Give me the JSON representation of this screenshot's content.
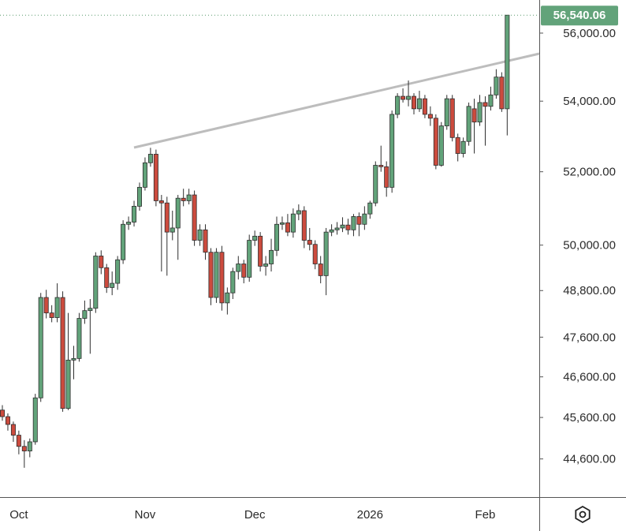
{
  "chart_data": {
    "type": "candlestick",
    "log_scale": true,
    "grid": false,
    "up_color": "#62a37a",
    "down_color": "#cc4b3e",
    "categories": [
      null,
      null,
      null,
      "Oct",
      null,
      null,
      null,
      null,
      null,
      null,
      null,
      null,
      null,
      null,
      null,
      null,
      null,
      null,
      null,
      null,
      null,
      null,
      null,
      null,
      null,
      null,
      "Nov",
      null,
      null,
      null,
      null,
      null,
      null,
      null,
      null,
      null,
      null,
      null,
      null,
      null,
      null,
      null,
      null,
      null,
      null,
      null,
      "Dec",
      null,
      null,
      null,
      null,
      null,
      null,
      null,
      null,
      null,
      null,
      null,
      null,
      null,
      null,
      null,
      null,
      null,
      null,
      null,
      null,
      "2026",
      null,
      null,
      null,
      null,
      null,
      null,
      null,
      null,
      null,
      null,
      null,
      null,
      null,
      null,
      null,
      null,
      null,
      null,
      null,
      null,
      "Feb",
      null,
      null,
      null,
      null
    ],
    "open": [
      45780,
      45620,
      45430,
      45170,
      44900,
      44790,
      45010,
      46080,
      48620,
      48220,
      48100,
      48620,
      45820,
      47020,
      47060,
      48080,
      48280,
      48340,
      49710,
      49400,
      48880,
      48990,
      49610,
      50560,
      50620,
      51050,
      51570,
      52250,
      52490,
      51200,
      51140,
      50350,
      50460,
      51270,
      51200,
      51360,
      50130,
      50410,
      49810,
      48620,
      49810,
      48480,
      48740,
      49300,
      49500,
      49150,
      50130,
      50240,
      49440,
      49500,
      49860,
      50560,
      50600,
      50350,
      50840,
      50930,
      50130,
      50020,
      49500,
      49190,
      50350,
      50410,
      50460,
      50540,
      50410,
      50770,
      50560,
      50840,
      51140,
      52180,
      52140,
      51570,
      53620,
      54140,
      54050,
      54140,
      53780,
      54070,
      53620,
      53510,
      52180,
      53290,
      54070,
      52960,
      52510,
      52850,
      53780,
      53400,
      53960,
      53850,
      54180,
      54700,
      53780
    ],
    "high": [
      45900,
      45700,
      45500,
      45280,
      45050,
      45090,
      46180,
      48740,
      48820,
      48420,
      48990,
      48780,
      48220,
      47380,
      48220,
      48540,
      48580,
      49810,
      49860,
      49500,
      49300,
      49710,
      50670,
      50770,
      51200,
      51700,
      52400,
      52670,
      52620,
      51360,
      51310,
      50930,
      51360,
      51530,
      51530,
      51480,
      50560,
      50560,
      49920,
      49920,
      49980,
      48880,
      49400,
      49710,
      49610,
      50280,
      50390,
      50350,
      49710,
      50170,
      50770,
      50770,
      50840,
      50990,
      51100,
      51050,
      50460,
      50130,
      49710,
      50460,
      50560,
      50620,
      50750,
      50710,
      50840,
      50880,
      51050,
      51200,
      52290,
      52730,
      52290,
      53730,
      54230,
      54370,
      54600,
      54230,
      54300,
      54180,
      53850,
      53620,
      53400,
      54180,
      54180,
      53070,
      52960,
      53960,
      54070,
      54180,
      54140,
      54420,
      54930,
      54840,
      56540.06
    ],
    "low": [
      45520,
      45280,
      45010,
      44710,
      44390,
      44640,
      44940,
      45980,
      48080,
      47980,
      47980,
      45740,
      45780,
      46540,
      46980,
      47940,
      47180,
      48220,
      49230,
      48740,
      48680,
      48820,
      49500,
      50410,
      50500,
      50930,
      51480,
      52140,
      51050,
      49300,
      49190,
      50130,
      49610,
      51050,
      51100,
      49980,
      49980,
      49610,
      48420,
      48480,
      48280,
      48180,
      48580,
      49090,
      48990,
      49030,
      49980,
      49300,
      49190,
      49300,
      49710,
      50410,
      50240,
      50200,
      50670,
      49920,
      49860,
      49360,
      48990,
      48680,
      50240,
      50280,
      50350,
      50280,
      50240,
      50240,
      50410,
      50710,
      51050,
      52000,
      51310,
      51420,
      53510,
      53960,
      53850,
      53620,
      53690,
      53510,
      53290,
      52070,
      52140,
      53180,
      52850,
      52290,
      52400,
      52730,
      52510,
      53290,
      52730,
      53730,
      54070,
      53690,
      53020
    ],
    "close": [
      45620,
      45430,
      45170,
      44900,
      44790,
      45010,
      46080,
      48620,
      48220,
      48100,
      48620,
      45820,
      47020,
      47060,
      48080,
      48280,
      48340,
      49710,
      49400,
      48880,
      48990,
      49610,
      50560,
      50620,
      51050,
      51570,
      52250,
      52490,
      51200,
      51140,
      50350,
      50460,
      51270,
      51200,
      51360,
      50130,
      50410,
      49810,
      48620,
      49810,
      48480,
      48740,
      49300,
      49500,
      49150,
      50130,
      50240,
      49440,
      49500,
      49860,
      50560,
      50600,
      50350,
      50840,
      50930,
      50130,
      50020,
      49500,
      49190,
      50350,
      50410,
      50460,
      50540,
      50410,
      50770,
      50560,
      50840,
      51140,
      52180,
      52140,
      51570,
      53620,
      54140,
      54050,
      54140,
      53780,
      54070,
      53620,
      53510,
      52180,
      53290,
      54070,
      52960,
      52510,
      52850,
      53850,
      53400,
      53960,
      53850,
      54180,
      54700,
      53780,
      56540.06
    ],
    "last_price_label": "56,540.06",
    "ylim": [
      43700,
      57000
    ],
    "yticks": [
      {
        "value": 44600,
        "label": "44,600.00"
      },
      {
        "value": 45600,
        "label": "45,600.00"
      },
      {
        "value": 46600,
        "label": "46,600.00"
      },
      {
        "value": 47600,
        "label": "47,600.00"
      },
      {
        "value": 48800,
        "label": "48,800.00"
      },
      {
        "value": 50000,
        "label": "50,000.00"
      },
      {
        "value": 52000,
        "label": "52,000.00"
      },
      {
        "value": 54000,
        "label": "54,000.00"
      },
      {
        "value": 56000,
        "label": "56,000.00"
      }
    ]
  }
}
